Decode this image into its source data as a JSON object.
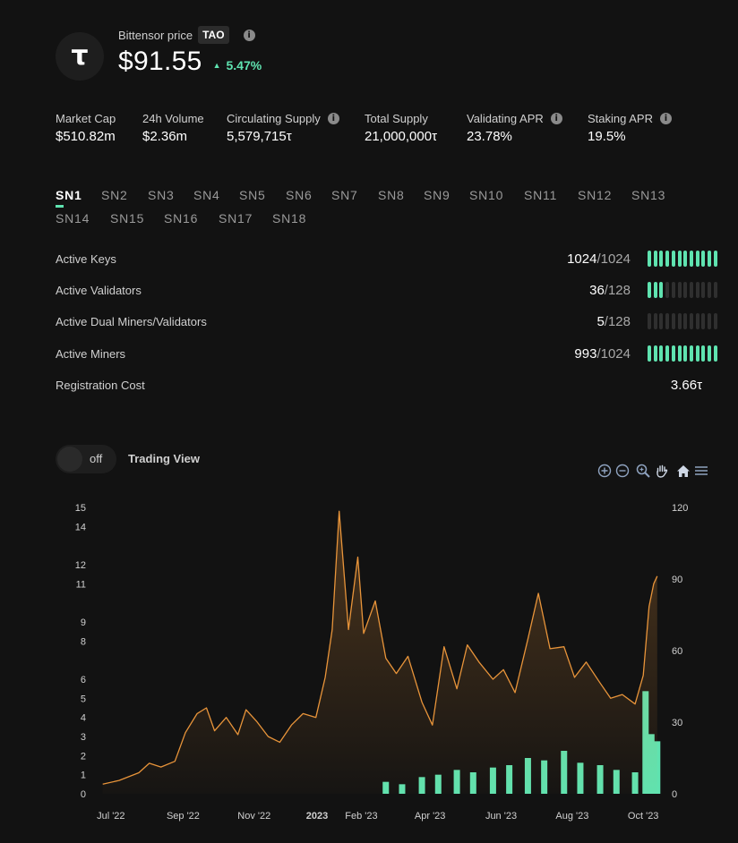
{
  "header": {
    "label": "Bittensor price",
    "ticker": "TAO",
    "logo_glyph": "τ",
    "info_icon": "i",
    "price": "$91.55",
    "change": "5.47%",
    "change_icon": "triangle-up-icon"
  },
  "stats": [
    {
      "label": "Market Cap",
      "value": "$510.82m",
      "info": false
    },
    {
      "label": "24h Volume",
      "value": "$2.36m",
      "info": false
    },
    {
      "label": "Circulating Supply",
      "value": "5,579,715τ",
      "info": true
    },
    {
      "label": "Total Supply",
      "value": "21,000,000τ",
      "info": false
    },
    {
      "label": "Validating APR",
      "value": "23.78%",
      "info": true
    },
    {
      "label": "Staking APR",
      "value": "19.5%",
      "info": true
    }
  ],
  "subnets": {
    "active": "SN1",
    "tabs": [
      "SN1",
      "SN2",
      "SN3",
      "SN4",
      "SN5",
      "SN6",
      "SN7",
      "SN8",
      "SN9",
      "SN10",
      "SN11",
      "SN12",
      "SN13",
      "SN14",
      "SN15",
      "SN16",
      "SN17",
      "SN18"
    ]
  },
  "metrics": [
    {
      "label": "Active Keys",
      "value": "1024",
      "total": "/1024",
      "fraction": 1.0
    },
    {
      "label": "Active Validators",
      "value": "36",
      "total": "/128",
      "fraction": 0.28
    },
    {
      "label": "Active Dual Miners/Validators",
      "value": "5",
      "total": "/128",
      "fraction": 0.04
    },
    {
      "label": "Active Miners",
      "value": "993",
      "total": "/1024",
      "fraction": 0.97
    },
    {
      "label": "Registration Cost",
      "value": "3.66τ"
    }
  ],
  "trading_view": {
    "toggle_state": "off",
    "label": "Trading View"
  },
  "toolbar": [
    "zoom-in-icon",
    "zoom-out-icon",
    "zoom-select-icon",
    "pan-hand-icon",
    "home-reset-icon",
    "menu-icon"
  ],
  "colors": {
    "background": "#121212",
    "accent": "#5fe3b0",
    "price_line": "#e8943a",
    "volume_bar": "#5fe3b0",
    "text_muted": "#d0d0d0"
  },
  "chart_data": {
    "type": "line",
    "x_tick_labels": [
      "Jul '22",
      "Sep '22",
      "Nov '22",
      "2023",
      "Feb '23",
      "Apr '23",
      "Jun '23",
      "Aug '23",
      "Oct '23"
    ],
    "y_left_ticks": [
      0,
      1,
      2,
      3,
      4,
      5,
      6,
      8,
      9,
      11,
      12,
      14,
      15
    ],
    "y_right_ticks": [
      0,
      30,
      60,
      90,
      120
    ],
    "ylim_left": [
      0,
      15
    ],
    "ylim_right": [
      0,
      120
    ],
    "series": [
      {
        "axis": "left",
        "type": "area",
        "x": [
          "2022-07-01",
          "2022-07-15",
          "2022-08-01",
          "2022-08-10",
          "2022-08-20",
          "2022-09-01",
          "2022-09-10",
          "2022-09-20",
          "2022-09-28",
          "2022-10-05",
          "2022-10-15",
          "2022-10-25",
          "2022-11-01",
          "2022-11-10",
          "2022-11-20",
          "2022-11-30",
          "2022-12-10",
          "2022-12-20",
          "2022-12-31",
          "2023-01-08",
          "2023-01-14",
          "2023-01-20",
          "2023-01-28",
          "2023-02-05",
          "2023-02-10",
          "2023-02-20",
          "2023-03-01",
          "2023-03-10",
          "2023-03-20",
          "2023-04-01",
          "2023-04-10",
          "2023-04-20",
          "2023-05-01",
          "2023-05-10",
          "2023-05-20",
          "2023-06-01",
          "2023-06-10",
          "2023-06-20",
          "2023-07-01",
          "2023-07-10",
          "2023-07-20",
          "2023-08-01",
          "2023-08-10",
          "2023-08-20",
          "2023-09-01",
          "2023-09-10",
          "2023-09-20",
          "2023-10-01",
          "2023-10-08",
          "2023-10-13",
          "2023-10-17",
          "2023-10-20"
        ],
        "values": [
          0.5,
          0.7,
          1.1,
          1.6,
          1.4,
          1.7,
          3.2,
          4.2,
          4.5,
          3.3,
          4.0,
          3.1,
          4.4,
          3.8,
          3.0,
          2.7,
          3.6,
          4.2,
          4.0,
          6.1,
          8.6,
          14.8,
          8.6,
          12.4,
          8.4,
          10.1,
          7.1,
          6.3,
          7.2,
          4.8,
          3.6,
          7.7,
          5.5,
          7.8,
          6.9,
          6.0,
          6.5,
          5.3,
          8.1,
          10.5,
          7.6,
          7.7,
          6.1,
          6.9,
          5.8,
          5.0,
          5.2,
          4.7,
          6.2,
          9.8,
          11.0,
          11.4
        ]
      },
      {
        "axis": "right",
        "type": "bar",
        "x": [
          "2023-03-01",
          "2023-03-15",
          "2023-04-01",
          "2023-04-15",
          "2023-05-01",
          "2023-05-15",
          "2023-06-01",
          "2023-06-15",
          "2023-07-01",
          "2023-07-15",
          "2023-08-01",
          "2023-08-15",
          "2023-09-01",
          "2023-09-15",
          "2023-10-01",
          "2023-10-10",
          "2023-10-15",
          "2023-10-20"
        ],
        "values": [
          5,
          4,
          7,
          8,
          10,
          9,
          11,
          12,
          15,
          14,
          18,
          13,
          12,
          10,
          9,
          43,
          25,
          22
        ]
      }
    ]
  }
}
